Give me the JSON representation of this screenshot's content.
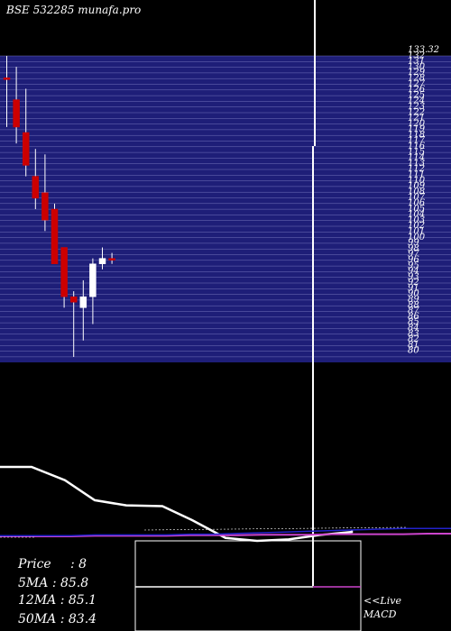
{
  "site_title": "BSE 532285 munafa.pro",
  "colors": {
    "background": "#000000",
    "price_band": "#1e1e78",
    "band_line": "#8888cc",
    "candle_up": "#ffffff",
    "candle_down": "#cc0000",
    "wick": "#ffffff",
    "ma_line": "#ffffff",
    "macd_line": "#cc44cc",
    "signal_line": "#2222cc"
  },
  "price_scale_labels": [
    "133.32",
    "132",
    "131",
    "130",
    "129",
    "128",
    "127",
    "126",
    "125",
    "124",
    "123",
    "122",
    "121",
    "120",
    "119",
    "118",
    "117",
    "116",
    "115",
    "114",
    "113",
    "112",
    "111",
    "110",
    "109",
    "108",
    "107",
    "106",
    "105",
    "104",
    "103",
    "102",
    "101",
    "100",
    "99",
    "98",
    "97",
    "96",
    "95",
    "94",
    "93",
    "92",
    "91",
    "90",
    "89",
    "88",
    "87",
    "86",
    "85",
    "84",
    "83",
    "82",
    "81",
    "80"
  ],
  "chart_data": {
    "type": "candlestick",
    "title": "BSE 532285 munafa.pro",
    "ylim": [
      78,
      134
    ],
    "candles": [
      {
        "open": 130,
        "high": 134,
        "low": 121,
        "close": 130,
        "dir": "flat"
      },
      {
        "open": 126,
        "high": 132,
        "low": 118,
        "close": 121,
        "dir": "down"
      },
      {
        "open": 120,
        "high": 128,
        "low": 112,
        "close": 114,
        "dir": "down"
      },
      {
        "open": 112,
        "high": 117,
        "low": 106,
        "close": 108,
        "dir": "down"
      },
      {
        "open": 109,
        "high": 116,
        "low": 102,
        "close": 104,
        "dir": "down"
      },
      {
        "open": 106,
        "high": 107,
        "low": 96,
        "close": 96,
        "dir": "down"
      },
      {
        "open": 99,
        "high": 99,
        "low": 88,
        "close": 90,
        "dir": "down"
      },
      {
        "open": 90,
        "high": 91,
        "low": 79,
        "close": 89,
        "dir": "down"
      },
      {
        "open": 88,
        "high": 93,
        "low": 82,
        "close": 90,
        "dir": "up"
      },
      {
        "open": 90,
        "high": 97,
        "low": 85,
        "close": 96,
        "dir": "up"
      },
      {
        "open": 96,
        "high": 99,
        "low": 95,
        "close": 97,
        "dir": "up"
      },
      {
        "open": 97,
        "high": 98,
        "low": 96,
        "close": 97,
        "dir": "flat"
      }
    ],
    "indicator_ma": [
      100,
      100,
      82,
      55,
      48,
      47,
      28,
      4,
      0,
      2,
      8,
      12,
      14,
      14
    ],
    "indicator_macd": [
      5,
      5,
      5,
      5,
      6,
      6,
      6,
      6,
      7,
      7,
      7,
      8,
      8,
      8,
      9,
      9,
      9,
      9,
      10,
      10
    ],
    "indicator_signal": [
      6,
      6,
      6,
      6,
      7,
      7,
      7,
      7,
      8,
      8,
      9,
      10,
      11,
      12,
      13,
      14,
      15,
      16,
      16,
      16
    ]
  },
  "stats": [
    {
      "label": "Price",
      "value": "8"
    },
    {
      "label": "5MA",
      "value": "85.8"
    },
    {
      "label": "12MA",
      "value": "85.1"
    },
    {
      "label": "50MA",
      "value": "83.4"
    }
  ],
  "live_label": "<<Live",
  "macd_label": "MACD"
}
